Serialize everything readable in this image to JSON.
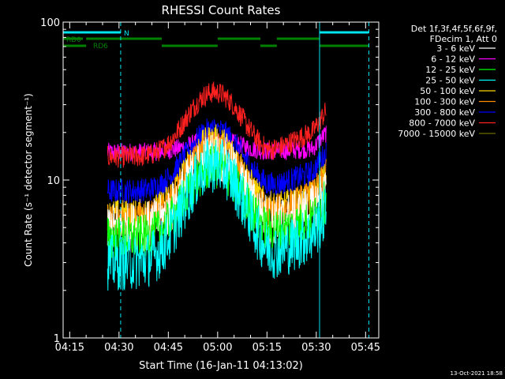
{
  "chart_data": {
    "type": "line",
    "title": "RHESSI Count Rates",
    "xlabel": "Start Time (16-Jan-11 04:13:02)",
    "ylabel": "Count Rate (s⁻¹ detector segment⁻¹)",
    "yscale": "log",
    "ylim": [
      1,
      100
    ],
    "xlim_minutes_after_0413": [
      0,
      96
    ],
    "y_tick_labels": [
      "1",
      "10",
      "100"
    ],
    "x_ticks": [
      {
        "label": "04:15",
        "t": 2
      },
      {
        "label": "04:30",
        "t": 17
      },
      {
        "label": "04:45",
        "t": 32
      },
      {
        "label": "05:00",
        "t": 47
      },
      {
        "label": "05:15",
        "t": 62
      },
      {
        "label": "05:30",
        "t": 77
      },
      {
        "label": "05:45",
        "t": 92
      }
    ],
    "legend": {
      "position": "top-right",
      "header": [
        "Det 1f,3f,4f,5f,6f,9f,",
        "FDecim 1, Att 0"
      ]
    },
    "series": [
      {
        "name": "3 - 6 keV",
        "color": "#ffffff",
        "base": 5.0,
        "peak": 14,
        "after": 7.0,
        "noise": 0.16
      },
      {
        "name": "6 - 12 keV",
        "color": "#ff00ff",
        "base": 15.0,
        "peak": 18,
        "after": 16.0,
        "noise": 0.06
      },
      {
        "name": "12 - 25 keV",
        "color": "#00ff00",
        "base": 4.3,
        "peak": 12,
        "after": 6.0,
        "noise": 0.14
      },
      {
        "name": "25 - 50 keV",
        "color": "#00ffff",
        "base": 3.0,
        "peak": 12.5,
        "after": 5.0,
        "noise": 0.18
      },
      {
        "name": "50 - 100 keV",
        "color": "#ffd700",
        "base": 6.0,
        "peak": 18,
        "after": 8.5,
        "noise": 0.1
      },
      {
        "name": "100 - 300 keV",
        "color": "#ff8c00",
        "base": 5.6,
        "peak": 16,
        "after": 8.5,
        "noise": 0.11
      },
      {
        "name": "300 - 800 keV",
        "color": "#0000ff",
        "base": 8.5,
        "peak": 21,
        "after": 12.0,
        "noise": 0.08
      },
      {
        "name": "800 - 7000 keV",
        "color": "#ff2020",
        "base": 14.0,
        "peak": 36,
        "after": 22.0,
        "noise": 0.07
      },
      {
        "name": "7000 - 15000 keV",
        "color": "#6b6b00",
        "base": 0,
        "peak": 0,
        "after": 0,
        "noise": 0
      }
    ],
    "series_time_range": [
      13.5,
      80
    ],
    "attenuator_flags": [
      {
        "label": "N",
        "color": "#00e5ee",
        "segments": [
          [
            0,
            17.5
          ],
          [
            78,
            93
          ]
        ]
      },
      {
        "label": "RD0",
        "color": "#008000",
        "segments": [
          [
            0,
            6
          ],
          [
            7,
            30
          ],
          [
            47,
            60
          ],
          [
            65,
            78
          ]
        ]
      },
      {
        "label": "RD6",
        "color": "#008000",
        "segments": [
          [
            0,
            7
          ],
          [
            30,
            47
          ],
          [
            60,
            65
          ],
          [
            78,
            93
          ]
        ]
      }
    ],
    "vertical_markers": [
      {
        "t": 0,
        "style": "solid"
      },
      {
        "t": 17.5,
        "style": "dashed"
      },
      {
        "t": 78,
        "style": "solid"
      },
      {
        "t": 93,
        "style": "dashed"
      }
    ],
    "footer_timestamp": "13-Oct-2021 18:58"
  }
}
